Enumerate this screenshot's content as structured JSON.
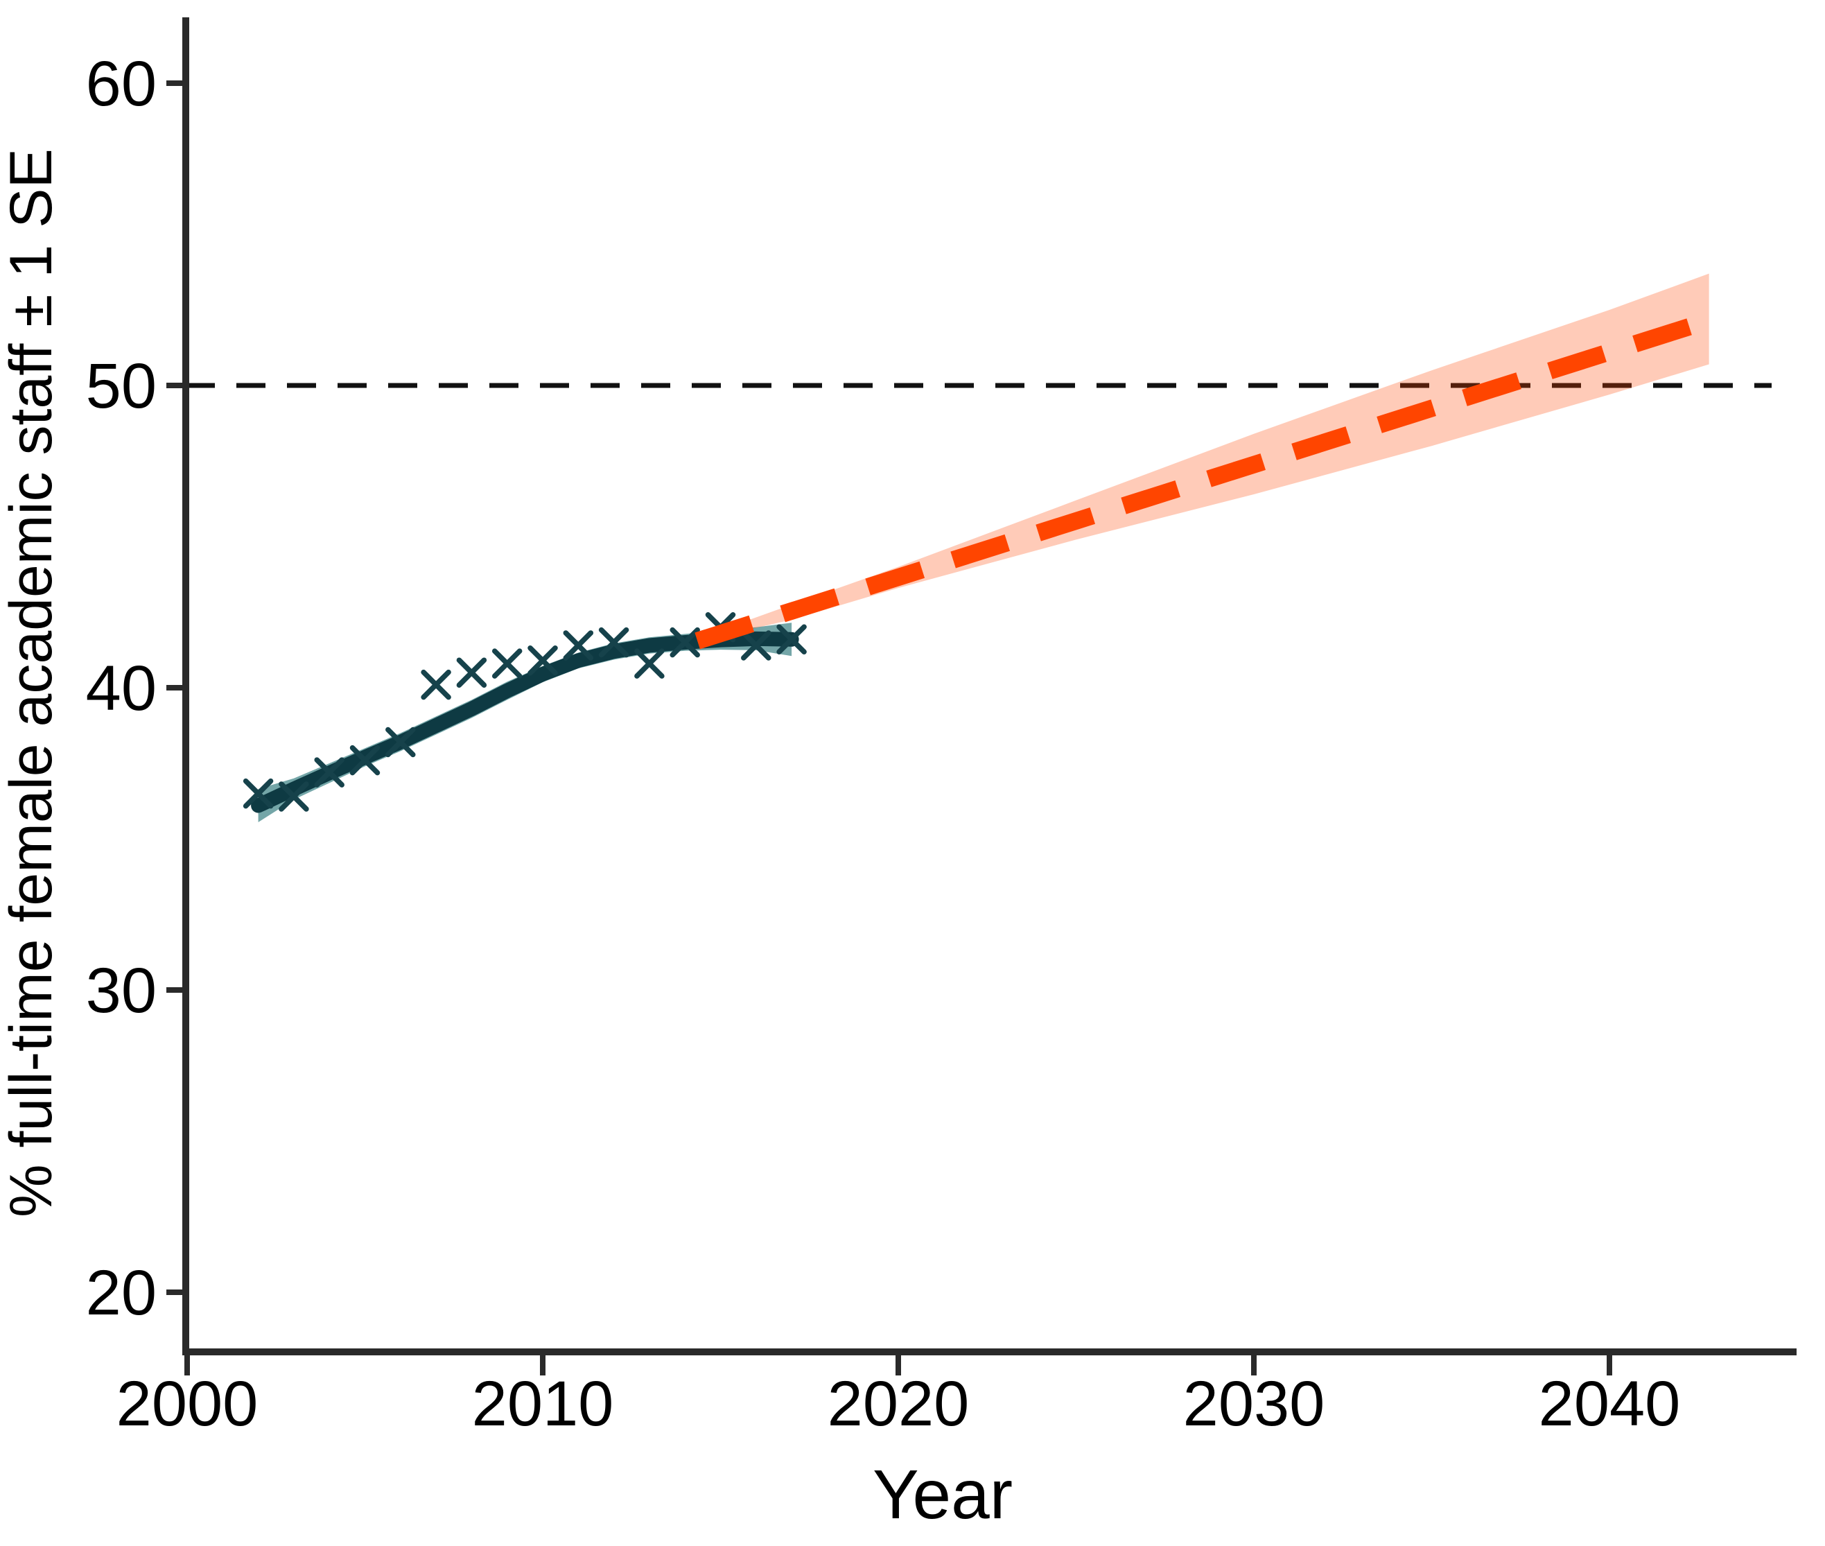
{
  "figure": {
    "background": "#ffffff"
  },
  "chart_data": {
    "type": "line",
    "title": "",
    "xlabel": "Year",
    "ylabel": "% full-time female academic staff ± 1 SE",
    "xlim": [
      2000,
      2045.5
    ],
    "ylim": [
      17.5,
      62
    ],
    "x_ticks": [
      2000,
      2010,
      2020,
      2030,
      2040
    ],
    "y_ticks": [
      20,
      30,
      40,
      50,
      60
    ],
    "grid": "off",
    "legend_position": "none",
    "reference_line": {
      "y": 50,
      "style": "dashed",
      "color": "#111111"
    },
    "series": [
      {
        "name": "observed_percent_female",
        "type": "scatter",
        "marker": "x",
        "points": [
          [
            2002,
            36.5
          ],
          [
            2003,
            36.4
          ],
          [
            2004,
            37.2
          ],
          [
            2005,
            37.6
          ],
          [
            2006,
            38.2
          ],
          [
            2007,
            40.1
          ],
          [
            2008,
            40.5
          ],
          [
            2009,
            40.8
          ],
          [
            2010,
            40.9
          ],
          [
            2011,
            41.4
          ],
          [
            2012,
            41.5
          ],
          [
            2013,
            40.8
          ],
          [
            2014,
            41.5
          ],
          [
            2015,
            42.0
          ],
          [
            2016,
            41.4
          ],
          [
            2017,
            41.6
          ]
        ]
      },
      {
        "name": "gam_fit",
        "type": "line",
        "points": [
          [
            2002,
            36.1
          ],
          [
            2003,
            36.65
          ],
          [
            2004,
            37.18
          ],
          [
            2005,
            37.7
          ],
          [
            2006,
            38.2
          ],
          [
            2007,
            38.75
          ],
          [
            2008,
            39.3
          ],
          [
            2009,
            39.9
          ],
          [
            2010,
            40.45
          ],
          [
            2011,
            40.9
          ],
          [
            2012,
            41.2
          ],
          [
            2013,
            41.4
          ],
          [
            2014,
            41.5
          ],
          [
            2015,
            41.58
          ],
          [
            2016,
            41.62
          ],
          [
            2017,
            41.6
          ]
        ]
      },
      {
        "name": "gam_fit_se_band",
        "type": "ribbon",
        "points_year_lower_upper": [
          [
            2002,
            35.55,
            36.65
          ],
          [
            2003,
            36.3,
            37.0
          ],
          [
            2004,
            36.85,
            37.5
          ],
          [
            2005,
            37.4,
            38.0
          ],
          [
            2006,
            37.9,
            38.5
          ],
          [
            2007,
            38.45,
            39.05
          ],
          [
            2008,
            39.0,
            39.6
          ],
          [
            2009,
            39.6,
            40.2
          ],
          [
            2010,
            40.18,
            40.72
          ],
          [
            2011,
            40.64,
            41.16
          ],
          [
            2012,
            40.93,
            41.47
          ],
          [
            2013,
            41.13,
            41.67
          ],
          [
            2014,
            41.22,
            41.78
          ],
          [
            2015,
            41.26,
            41.9
          ],
          [
            2016,
            41.24,
            42.0
          ],
          [
            2017,
            41.05,
            42.15
          ]
        ]
      },
      {
        "name": "linear_projection",
        "type": "dashed_line",
        "points": [
          [
            2014.35,
            41.55
          ],
          [
            2042.8,
            52.15
          ]
        ],
        "crosses_50_percent_at_year": 2037
      },
      {
        "name": "projection_se_band",
        "type": "ribbon",
        "points_year_lower_upper": [
          [
            2014.4,
            41.55,
            41.65
          ],
          [
            2017,
            42.25,
            42.75
          ],
          [
            2020,
            43.3,
            44.0
          ],
          [
            2025,
            44.9,
            46.2
          ],
          [
            2030,
            46.4,
            48.4
          ],
          [
            2035,
            48.0,
            50.5
          ],
          [
            2040,
            49.7,
            52.5
          ],
          [
            2042.8,
            50.7,
            53.7
          ]
        ]
      }
    ],
    "colors": {
      "fit_line": "#0e3a43",
      "fit_band": "#74a6a8",
      "observed_marker": "#16424b",
      "projection_line": "#ff4500",
      "projection_band": "rgba(255,69,0,0.28)",
      "reference_line": "#111111",
      "axis": "#2a2a2a"
    }
  }
}
